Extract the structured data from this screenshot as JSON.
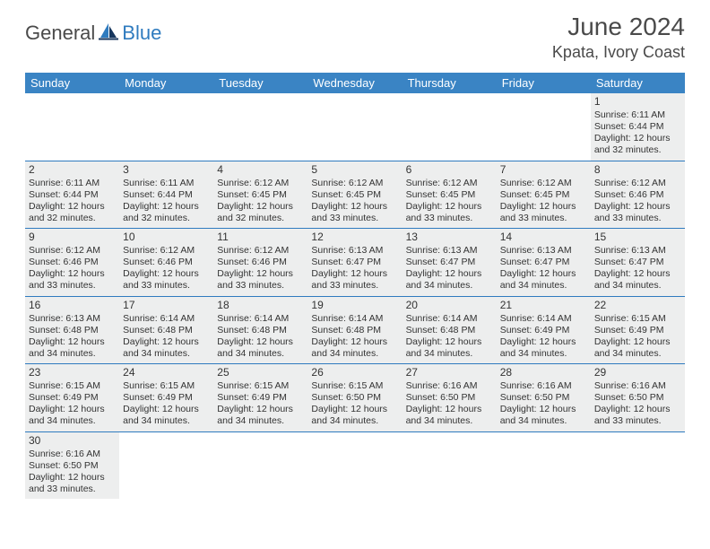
{
  "brand": {
    "general": "General",
    "blue": "Blue"
  },
  "title": "June 2024",
  "location": "Kpata, Ivory Coast",
  "colors": {
    "header_bg": "#3a84c4",
    "header_text": "#ffffff",
    "cell_border": "#2f7bbf",
    "cell_bg_filled": "#edeeee",
    "cell_bg_empty": "#ffffff",
    "body_text": "#333333",
    "title_text": "#4a4a4a",
    "logo_gray": "#4a4a4a",
    "logo_blue": "#2f7bbf"
  },
  "weekdays": [
    "Sunday",
    "Monday",
    "Tuesday",
    "Wednesday",
    "Thursday",
    "Friday",
    "Saturday"
  ],
  "cells": [
    [
      null,
      null,
      null,
      null,
      null,
      null,
      {
        "n": "1",
        "sr": "Sunrise: 6:11 AM",
        "ss": "Sunset: 6:44 PM",
        "d1": "Daylight: 12 hours",
        "d2": "and 32 minutes."
      }
    ],
    [
      {
        "n": "2",
        "sr": "Sunrise: 6:11 AM",
        "ss": "Sunset: 6:44 PM",
        "d1": "Daylight: 12 hours",
        "d2": "and 32 minutes."
      },
      {
        "n": "3",
        "sr": "Sunrise: 6:11 AM",
        "ss": "Sunset: 6:44 PM",
        "d1": "Daylight: 12 hours",
        "d2": "and 32 minutes."
      },
      {
        "n": "4",
        "sr": "Sunrise: 6:12 AM",
        "ss": "Sunset: 6:45 PM",
        "d1": "Daylight: 12 hours",
        "d2": "and 32 minutes."
      },
      {
        "n": "5",
        "sr": "Sunrise: 6:12 AM",
        "ss": "Sunset: 6:45 PM",
        "d1": "Daylight: 12 hours",
        "d2": "and 33 minutes."
      },
      {
        "n": "6",
        "sr": "Sunrise: 6:12 AM",
        "ss": "Sunset: 6:45 PM",
        "d1": "Daylight: 12 hours",
        "d2": "and 33 minutes."
      },
      {
        "n": "7",
        "sr": "Sunrise: 6:12 AM",
        "ss": "Sunset: 6:45 PM",
        "d1": "Daylight: 12 hours",
        "d2": "and 33 minutes."
      },
      {
        "n": "8",
        "sr": "Sunrise: 6:12 AM",
        "ss": "Sunset: 6:46 PM",
        "d1": "Daylight: 12 hours",
        "d2": "and 33 minutes."
      }
    ],
    [
      {
        "n": "9",
        "sr": "Sunrise: 6:12 AM",
        "ss": "Sunset: 6:46 PM",
        "d1": "Daylight: 12 hours",
        "d2": "and 33 minutes."
      },
      {
        "n": "10",
        "sr": "Sunrise: 6:12 AM",
        "ss": "Sunset: 6:46 PM",
        "d1": "Daylight: 12 hours",
        "d2": "and 33 minutes."
      },
      {
        "n": "11",
        "sr": "Sunrise: 6:12 AM",
        "ss": "Sunset: 6:46 PM",
        "d1": "Daylight: 12 hours",
        "d2": "and 33 minutes."
      },
      {
        "n": "12",
        "sr": "Sunrise: 6:13 AM",
        "ss": "Sunset: 6:47 PM",
        "d1": "Daylight: 12 hours",
        "d2": "and 33 minutes."
      },
      {
        "n": "13",
        "sr": "Sunrise: 6:13 AM",
        "ss": "Sunset: 6:47 PM",
        "d1": "Daylight: 12 hours",
        "d2": "and 34 minutes."
      },
      {
        "n": "14",
        "sr": "Sunrise: 6:13 AM",
        "ss": "Sunset: 6:47 PM",
        "d1": "Daylight: 12 hours",
        "d2": "and 34 minutes."
      },
      {
        "n": "15",
        "sr": "Sunrise: 6:13 AM",
        "ss": "Sunset: 6:47 PM",
        "d1": "Daylight: 12 hours",
        "d2": "and 34 minutes."
      }
    ],
    [
      {
        "n": "16",
        "sr": "Sunrise: 6:13 AM",
        "ss": "Sunset: 6:48 PM",
        "d1": "Daylight: 12 hours",
        "d2": "and 34 minutes."
      },
      {
        "n": "17",
        "sr": "Sunrise: 6:14 AM",
        "ss": "Sunset: 6:48 PM",
        "d1": "Daylight: 12 hours",
        "d2": "and 34 minutes."
      },
      {
        "n": "18",
        "sr": "Sunrise: 6:14 AM",
        "ss": "Sunset: 6:48 PM",
        "d1": "Daylight: 12 hours",
        "d2": "and 34 minutes."
      },
      {
        "n": "19",
        "sr": "Sunrise: 6:14 AM",
        "ss": "Sunset: 6:48 PM",
        "d1": "Daylight: 12 hours",
        "d2": "and 34 minutes."
      },
      {
        "n": "20",
        "sr": "Sunrise: 6:14 AM",
        "ss": "Sunset: 6:48 PM",
        "d1": "Daylight: 12 hours",
        "d2": "and 34 minutes."
      },
      {
        "n": "21",
        "sr": "Sunrise: 6:14 AM",
        "ss": "Sunset: 6:49 PM",
        "d1": "Daylight: 12 hours",
        "d2": "and 34 minutes."
      },
      {
        "n": "22",
        "sr": "Sunrise: 6:15 AM",
        "ss": "Sunset: 6:49 PM",
        "d1": "Daylight: 12 hours",
        "d2": "and 34 minutes."
      }
    ],
    [
      {
        "n": "23",
        "sr": "Sunrise: 6:15 AM",
        "ss": "Sunset: 6:49 PM",
        "d1": "Daylight: 12 hours",
        "d2": "and 34 minutes."
      },
      {
        "n": "24",
        "sr": "Sunrise: 6:15 AM",
        "ss": "Sunset: 6:49 PM",
        "d1": "Daylight: 12 hours",
        "d2": "and 34 minutes."
      },
      {
        "n": "25",
        "sr": "Sunrise: 6:15 AM",
        "ss": "Sunset: 6:49 PM",
        "d1": "Daylight: 12 hours",
        "d2": "and 34 minutes."
      },
      {
        "n": "26",
        "sr": "Sunrise: 6:15 AM",
        "ss": "Sunset: 6:50 PM",
        "d1": "Daylight: 12 hours",
        "d2": "and 34 minutes."
      },
      {
        "n": "27",
        "sr": "Sunrise: 6:16 AM",
        "ss": "Sunset: 6:50 PM",
        "d1": "Daylight: 12 hours",
        "d2": "and 34 minutes."
      },
      {
        "n": "28",
        "sr": "Sunrise: 6:16 AM",
        "ss": "Sunset: 6:50 PM",
        "d1": "Daylight: 12 hours",
        "d2": "and 34 minutes."
      },
      {
        "n": "29",
        "sr": "Sunrise: 6:16 AM",
        "ss": "Sunset: 6:50 PM",
        "d1": "Daylight: 12 hours",
        "d2": "and 33 minutes."
      }
    ],
    [
      {
        "n": "30",
        "sr": "Sunrise: 6:16 AM",
        "ss": "Sunset: 6:50 PM",
        "d1": "Daylight: 12 hours",
        "d2": "and 33 minutes."
      },
      null,
      null,
      null,
      null,
      null,
      null
    ]
  ]
}
